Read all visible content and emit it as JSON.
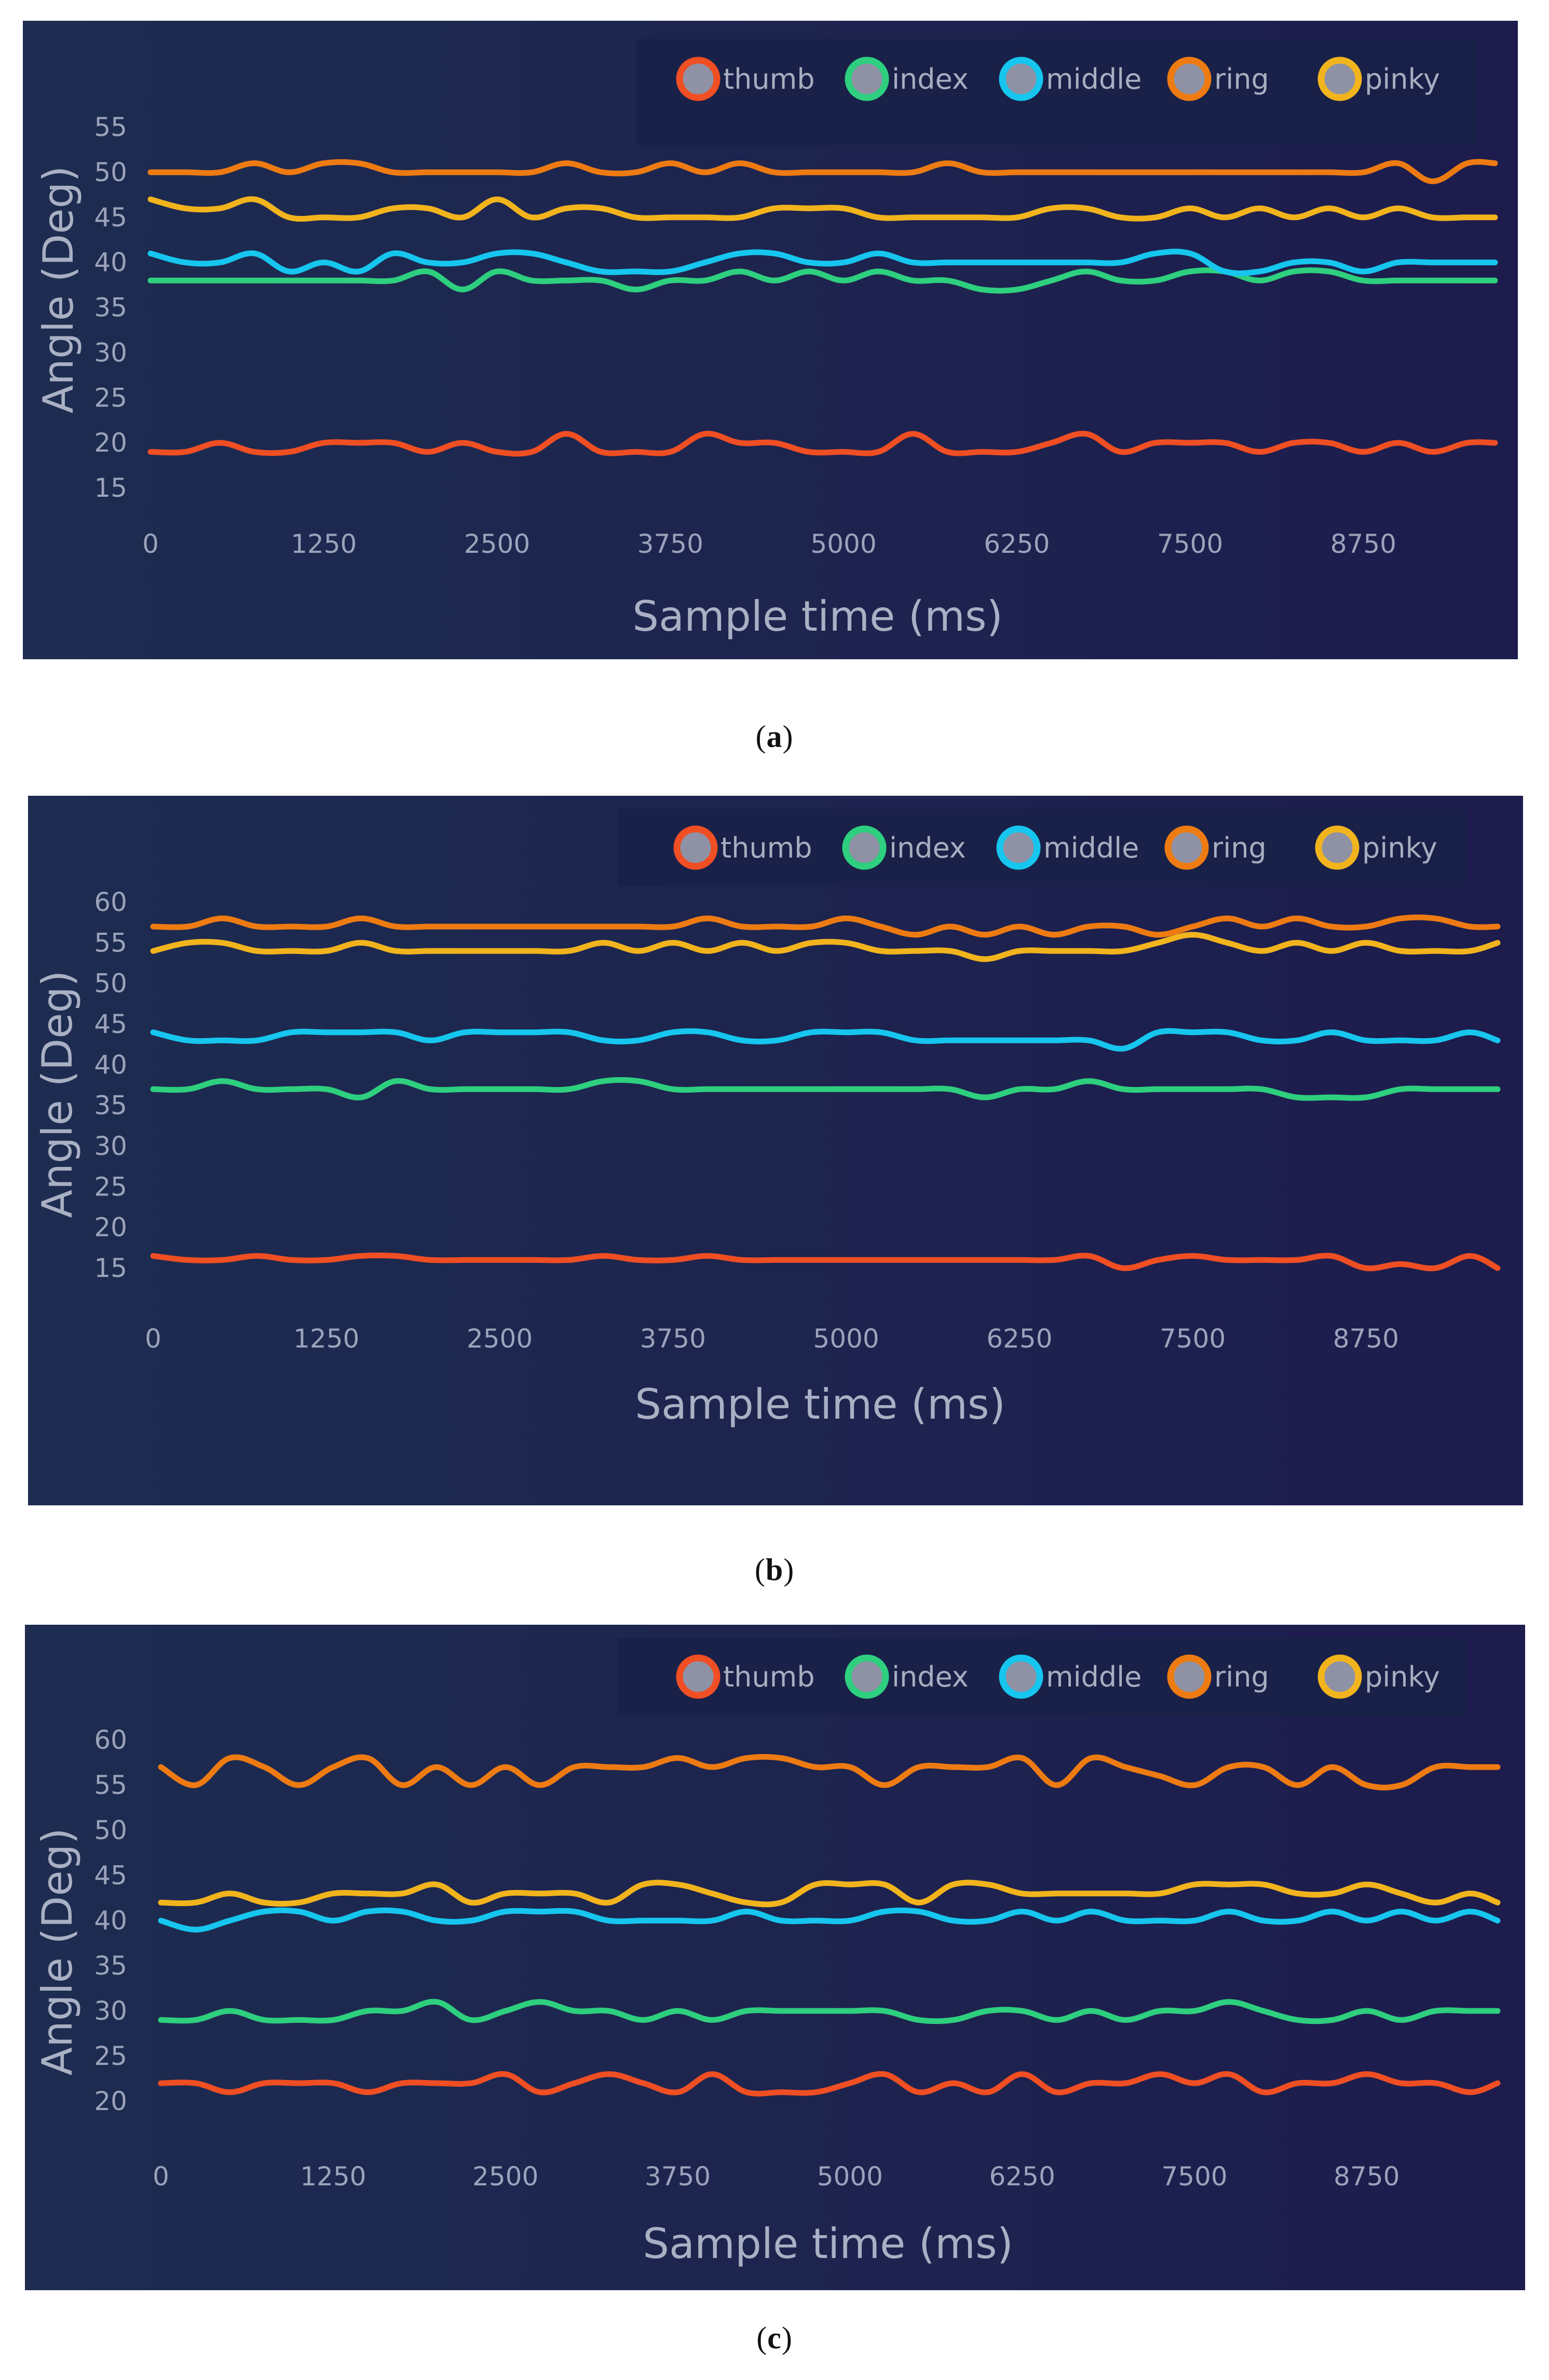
{
  "chart_data": [
    {
      "type": "line",
      "panel_label": "a",
      "xlabel": "Sample time (ms)",
      "ylabel": "Angle (Deg)",
      "xlim": [
        0,
        9700
      ],
      "ylim": [
        15,
        55
      ],
      "x_ticks": [
        "0",
        "1250",
        "2500",
        "3750",
        "5000",
        "6250",
        "7500",
        "8750"
      ],
      "y_ticks": [
        "55",
        "50",
        "45",
        "40",
        "35",
        "30",
        "25",
        "20",
        "15"
      ],
      "legend": [
        "thumb",
        "index",
        "middle",
        "ring",
        "pinky"
      ],
      "colors": {
        "background": "#1c2450",
        "thumb": "#f04e23",
        "index": "#2ecf7e",
        "middle": "#16c6ee",
        "ring": "#ee7b12",
        "pinky": "#f2b41d",
        "marker_center": "#8e92a4"
      },
      "x": [
        0,
        250,
        500,
        750,
        1000,
        1250,
        1500,
        1750,
        2000,
        2250,
        2500,
        2750,
        3000,
        3250,
        3500,
        3750,
        4000,
        4250,
        4500,
        4750,
        5000,
        5250,
        5500,
        5750,
        6000,
        6250,
        6500,
        6750,
        7000,
        7250,
        7500,
        7750,
        8000,
        8250,
        8500,
        8750,
        9000,
        9250,
        9500,
        9700
      ],
      "series": [
        {
          "name": "thumb",
          "values": [
            19,
            19,
            20,
            19,
            19,
            20,
            20,
            20,
            19,
            20,
            19,
            19,
            21,
            19,
            19,
            19,
            21,
            20,
            20,
            19,
            19,
            19,
            21,
            19,
            19,
            19,
            20,
            21,
            19,
            20,
            20,
            20,
            19,
            20,
            20,
            19,
            20,
            19,
            20,
            20
          ]
        },
        {
          "name": "index",
          "values": [
            38,
            38,
            38,
            38,
            38,
            38,
            38,
            38,
            39,
            37,
            39,
            38,
            38,
            38,
            37,
            38,
            38,
            39,
            38,
            39,
            38,
            39,
            38,
            38,
            37,
            37,
            38,
            39,
            38,
            38,
            39,
            39,
            38,
            39,
            39,
            38,
            38,
            38,
            38,
            38
          ]
        },
        {
          "name": "middle",
          "values": [
            41,
            40,
            40,
            41,
            39,
            40,
            39,
            41,
            40,
            40,
            41,
            41,
            40,
            39,
            39,
            39,
            40,
            41,
            41,
            40,
            40,
            41,
            40,
            40,
            40,
            40,
            40,
            40,
            40,
            41,
            41,
            39,
            39,
            40,
            40,
            39,
            40,
            40,
            40,
            40
          ]
        },
        {
          "name": "ring",
          "values": [
            50,
            50,
            50,
            51,
            50,
            51,
            51,
            50,
            50,
            50,
            50,
            50,
            51,
            50,
            50,
            51,
            50,
            51,
            50,
            50,
            50,
            50,
            50,
            51,
            50,
            50,
            50,
            50,
            50,
            50,
            50,
            50,
            50,
            50,
            50,
            50,
            51,
            49,
            51,
            51
          ]
        },
        {
          "name": "pinky",
          "values": [
            47,
            46,
            46,
            47,
            45,
            45,
            45,
            46,
            46,
            45,
            47,
            45,
            46,
            46,
            45,
            45,
            45,
            45,
            46,
            46,
            46,
            45,
            45,
            45,
            45,
            45,
            46,
            46,
            45,
            45,
            46,
            45,
            46,
            45,
            46,
            45,
            46,
            45,
            45,
            45
          ]
        }
      ]
    },
    {
      "type": "line",
      "panel_label": "b",
      "xlabel": "Sample time (ms)",
      "ylabel": "Angle (Deg)",
      "xlim": [
        0,
        9700
      ],
      "ylim": [
        15,
        60
      ],
      "x_ticks": [
        "0",
        "1250",
        "2500",
        "3750",
        "5000",
        "6250",
        "7500",
        "8750"
      ],
      "y_ticks": [
        "60",
        "55",
        "50",
        "45",
        "40",
        "35",
        "30",
        "25",
        "20",
        "15"
      ],
      "legend": [
        "thumb",
        "index",
        "middle",
        "ring",
        "pinky"
      ],
      "colors": {
        "background": "#1c2450",
        "thumb": "#f04e23",
        "index": "#2ecf7e",
        "middle": "#16c6ee",
        "ring": "#ee7b12",
        "pinky": "#f2b41d",
        "marker_center": "#8e92a4"
      },
      "x": [
        0,
        250,
        500,
        750,
        1000,
        1250,
        1500,
        1750,
        2000,
        2250,
        2500,
        2750,
        3000,
        3250,
        3500,
        3750,
        4000,
        4250,
        4500,
        4750,
        5000,
        5250,
        5500,
        5750,
        6000,
        6250,
        6500,
        6750,
        7000,
        7250,
        7500,
        7750,
        8000,
        8250,
        8500,
        8750,
        9000,
        9250,
        9500,
        9700
      ],
      "series": [
        {
          "name": "thumb",
          "values": [
            16.5,
            16,
            16,
            16.5,
            16,
            16,
            16.5,
            16.5,
            16,
            16,
            16,
            16,
            16,
            16.5,
            16,
            16,
            16.5,
            16,
            16,
            16,
            16,
            16,
            16,
            16,
            16,
            16,
            16,
            16.5,
            15,
            16,
            16.5,
            16,
            16,
            16,
            16.5,
            15,
            15.5,
            15,
            16.5,
            15
          ]
        },
        {
          "name": "index",
          "values": [
            37,
            37,
            38,
            37,
            37,
            37,
            36,
            38,
            37,
            37,
            37,
            37,
            37,
            38,
            38,
            37,
            37,
            37,
            37,
            37,
            37,
            37,
            37,
            37,
            36,
            37,
            37,
            38,
            37,
            37,
            37,
            37,
            37,
            36,
            36,
            36,
            37,
            37,
            37,
            37
          ]
        },
        {
          "name": "middle",
          "values": [
            44,
            43,
            43,
            43,
            44,
            44,
            44,
            44,
            43,
            44,
            44,
            44,
            44,
            43,
            43,
            44,
            44,
            43,
            43,
            44,
            44,
            44,
            43,
            43,
            43,
            43,
            43,
            43,
            42,
            44,
            44,
            44,
            43,
            43,
            44,
            43,
            43,
            43,
            44,
            43
          ]
        },
        {
          "name": "ring",
          "values": [
            57,
            57,
            58,
            57,
            57,
            57,
            58,
            57,
            57,
            57,
            57,
            57,
            57,
            57,
            57,
            57,
            58,
            57,
            57,
            57,
            58,
            57,
            56,
            57,
            56,
            57,
            56,
            57,
            57,
            56,
            57,
            58,
            57,
            58,
            57,
            57,
            58,
            58,
            57,
            57
          ]
        },
        {
          "name": "pinky",
          "values": [
            54,
            55,
            55,
            54,
            54,
            54,
            55,
            54,
            54,
            54,
            54,
            54,
            54,
            55,
            54,
            55,
            54,
            55,
            54,
            55,
            55,
            54,
            54,
            54,
            53,
            54,
            54,
            54,
            54,
            55,
            56,
            55,
            54,
            55,
            54,
            55,
            54,
            54,
            54,
            55
          ]
        }
      ]
    },
    {
      "type": "line",
      "panel_label": "c",
      "xlabel": "Sample time (ms)",
      "ylabel": "Angle (Deg)",
      "xlim": [
        0,
        9700
      ],
      "ylim": [
        20,
        60
      ],
      "x_ticks": [
        "0",
        "1250",
        "2500",
        "3750",
        "5000",
        "6250",
        "7500",
        "8750"
      ],
      "y_ticks": [
        "60",
        "55",
        "50",
        "45",
        "40",
        "35",
        "30",
        "25",
        "20"
      ],
      "legend": [
        "thumb",
        "index",
        "middle",
        "ring",
        "pinky"
      ],
      "colors": {
        "background": "#1c2450",
        "thumb": "#f04e23",
        "index": "#2ecf7e",
        "middle": "#16c6ee",
        "ring": "#ee7b12",
        "pinky": "#f2b41d",
        "marker_center": "#8e92a4"
      },
      "x": [
        0,
        250,
        500,
        750,
        1000,
        1250,
        1500,
        1750,
        2000,
        2250,
        2500,
        2750,
        3000,
        3250,
        3500,
        3750,
        4000,
        4250,
        4500,
        4750,
        5000,
        5250,
        5500,
        5750,
        6000,
        6250,
        6500,
        6750,
        7000,
        7250,
        7500,
        7750,
        8000,
        8250,
        8500,
        8750,
        9000,
        9250,
        9500,
        9700
      ],
      "series": [
        {
          "name": "thumb",
          "values": [
            22,
            22,
            21,
            22,
            22,
            22,
            21,
            22,
            22,
            22,
            23,
            21,
            22,
            23,
            22,
            21,
            23,
            21,
            21,
            21,
            22,
            23,
            21,
            22,
            21,
            23,
            21,
            22,
            22,
            23,
            22,
            23,
            21,
            22,
            22,
            23,
            22,
            22,
            21,
            22
          ]
        },
        {
          "name": "index",
          "values": [
            29,
            29,
            30,
            29,
            29,
            29,
            30,
            30,
            31,
            29,
            30,
            31,
            30,
            30,
            29,
            30,
            29,
            30,
            30,
            30,
            30,
            30,
            29,
            29,
            30,
            30,
            29,
            30,
            29,
            30,
            30,
            31,
            30,
            29,
            29,
            30,
            29,
            30,
            30,
            30
          ]
        },
        {
          "name": "middle",
          "values": [
            40,
            39,
            40,
            41,
            41,
            40,
            41,
            41,
            40,
            40,
            41,
            41,
            41,
            40,
            40,
            40,
            40,
            41,
            40,
            40,
            40,
            41,
            41,
            40,
            40,
            41,
            40,
            41,
            40,
            40,
            40,
            41,
            40,
            40,
            41,
            40,
            41,
            40,
            41,
            40
          ]
        },
        {
          "name": "ring",
          "values": [
            57,
            55,
            58,
            57,
            55,
            57,
            58,
            55,
            57,
            55,
            57,
            55,
            57,
            57,
            57,
            58,
            57,
            58,
            58,
            57,
            57,
            55,
            57,
            57,
            57,
            58,
            55,
            58,
            57,
            56,
            55,
            57,
            57,
            55,
            57,
            55,
            55,
            57,
            57,
            57
          ]
        },
        {
          "name": "pinky",
          "values": [
            42,
            42,
            43,
            42,
            42,
            43,
            43,
            43,
            44,
            42,
            43,
            43,
            43,
            42,
            44,
            44,
            43,
            42,
            42,
            44,
            44,
            44,
            42,
            44,
            44,
            43,
            43,
            43,
            43,
            43,
            44,
            44,
            44,
            43,
            43,
            44,
            43,
            42,
            43,
            42
          ]
        }
      ]
    }
  ],
  "captions": [
    {
      "open": "(",
      "label": "a",
      "close": ")"
    },
    {
      "open": "(",
      "label": "b",
      "close": ")"
    },
    {
      "open": "(",
      "label": "c",
      "close": ")"
    }
  ]
}
